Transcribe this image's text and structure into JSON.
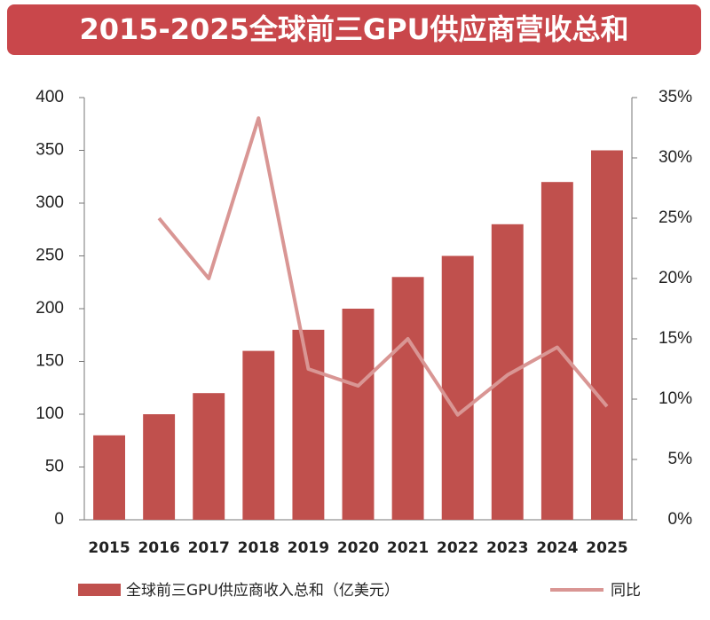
{
  "chart_data": {
    "type": "bar-line",
    "title": "2015-2025全球前三GPU供应商营收总和",
    "categories": [
      "2015",
      "2016",
      "2017",
      "2018",
      "2019",
      "2020",
      "2021",
      "2022",
      "2023",
      "2024",
      "2025"
    ],
    "series": [
      {
        "name": "全球前三GPU供应商收入总和（亿美元）",
        "type": "bar",
        "color": "#c0504d",
        "values": [
          80,
          100,
          120,
          160,
          180,
          200,
          230,
          250,
          280,
          320,
          350
        ]
      },
      {
        "name": "同比",
        "type": "line",
        "axis": "y2",
        "color": "#d99694",
        "values": [
          null,
          25,
          20,
          33.3,
          12.5,
          11.1,
          15,
          8.7,
          12,
          14.3,
          9.4
        ]
      }
    ],
    "ylim": [
      0,
      400
    ],
    "yticks": [
      0,
      50,
      100,
      150,
      200,
      250,
      300,
      350,
      400
    ],
    "y2lim": [
      0,
      35
    ],
    "y2ticks": [
      {
        "value": 0,
        "label": "0%"
      },
      {
        "value": 5,
        "label": "5%"
      },
      {
        "value": 10,
        "label": "10%"
      },
      {
        "value": 15,
        "label": "15%"
      },
      {
        "value": 20,
        "label": "20%"
      },
      {
        "value": 25,
        "label": "25%"
      },
      {
        "value": 30,
        "label": "30%"
      },
      {
        "value": 35,
        "label": "35%"
      }
    ],
    "grid": false
  }
}
